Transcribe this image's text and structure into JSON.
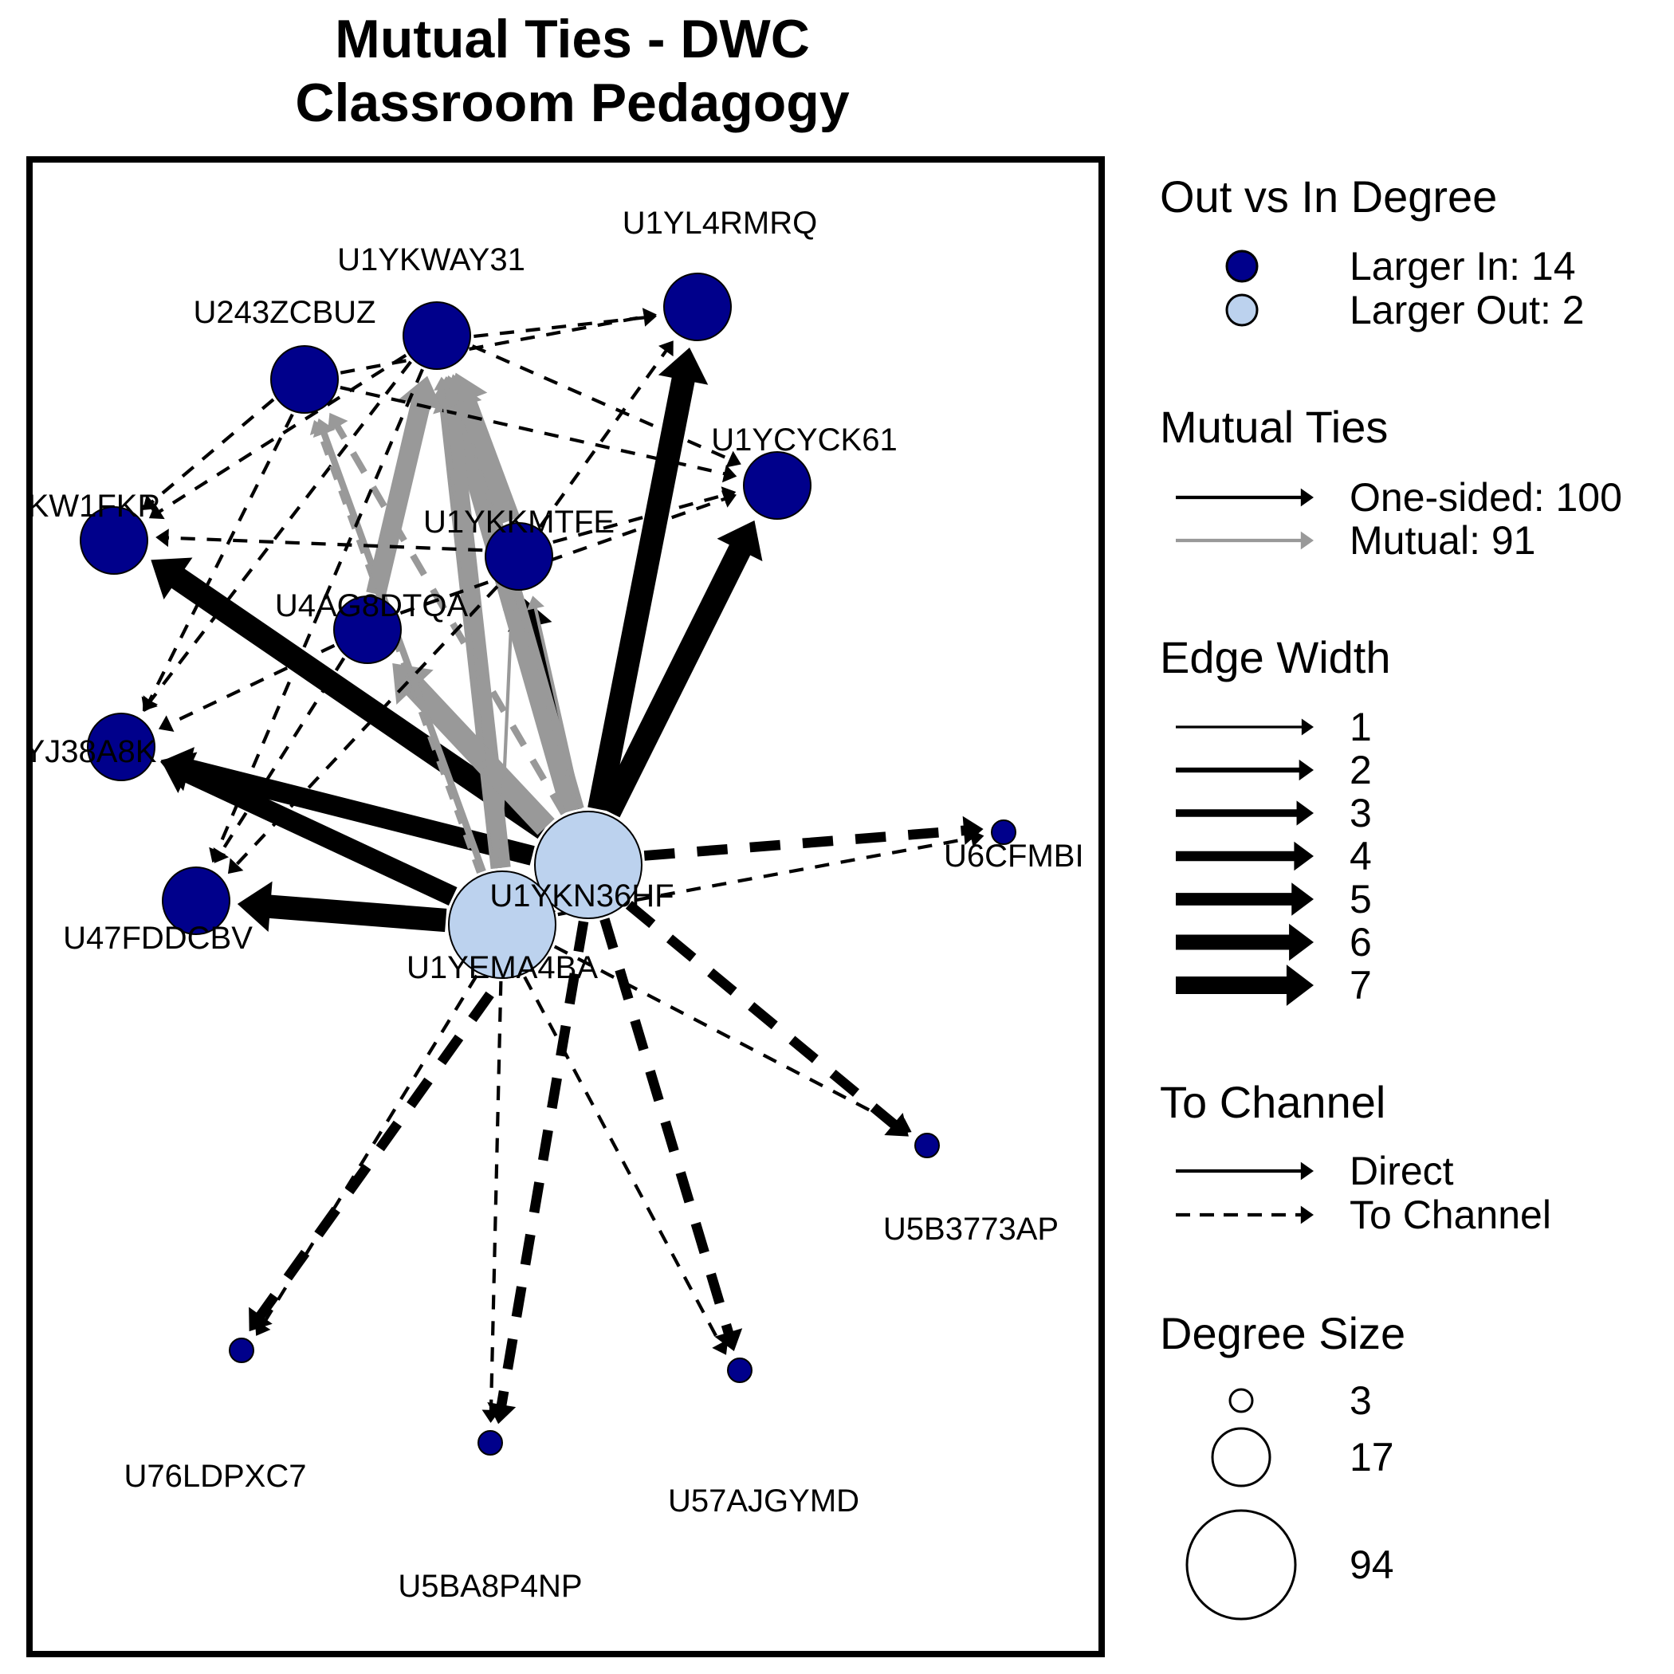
{
  "title_line1": "Mutual Ties - DWC",
  "title_line2": "Classroom Pedagogy",
  "colors": {
    "larger_in": "#00008B",
    "larger_out": "#BCD2EE",
    "one_sided": "#000000",
    "mutual": "#999999"
  },
  "nodes": [
    {
      "id": "U1YL4RMRQ",
      "label": "U1YL4RMRQ",
      "group": "in",
      "size": "large"
    },
    {
      "id": "U1YKWAY31",
      "label": "U1YKWAY31",
      "group": "in",
      "size": "large"
    },
    {
      "id": "U243ZCBUZ",
      "label": "U243ZCBUZ",
      "group": "in",
      "size": "large"
    },
    {
      "id": "U1YCYCK61",
      "label": "U1YCYCK61",
      "group": "in",
      "size": "large"
    },
    {
      "id": "KW1FKR",
      "label": "KW1FKR",
      "group": "in",
      "size": "large"
    },
    {
      "id": "U1YKKMTFE",
      "label": "U1YKKMTFE",
      "group": "in",
      "size": "large"
    },
    {
      "id": "U4AG8DTQA",
      "label": "U4AG8DTQA",
      "group": "in",
      "size": "large"
    },
    {
      "id": "YJ38A8K",
      "label": "YJ38A8K",
      "group": "in",
      "size": "large"
    },
    {
      "id": "U47FDDCBV",
      "label": "U47FDDCBV",
      "group": "in",
      "size": "large"
    },
    {
      "id": "U1YKN36HF",
      "label": "U1YKN36HF",
      "group": "out",
      "size": "xlarge"
    },
    {
      "id": "U1YEMA4BA",
      "label": "U1YEMA4BA",
      "group": "out",
      "size": "xlarge"
    },
    {
      "id": "U6CFMBI",
      "label": "U6CFMBI",
      "group": "in",
      "size": "small"
    },
    {
      "id": "U5B3773AP",
      "label": "U5B3773AP",
      "group": "in",
      "size": "small"
    },
    {
      "id": "U76LDPXC7",
      "label": "U76LDPXC7",
      "group": "in",
      "size": "small"
    },
    {
      "id": "U5BA8P4NP",
      "label": "U5BA8P4NP",
      "group": "in",
      "size": "small"
    },
    {
      "id": "U57AJGYMD",
      "label": "U57AJGYMD",
      "group": "in",
      "size": "small"
    }
  ],
  "edges": [
    {
      "from": "U1YKN36HF",
      "to": "U1YCYCK61",
      "type": "one_sided",
      "width": 7,
      "dashed": false
    },
    {
      "from": "U1YKN36HF",
      "to": "U1YL4RMRQ",
      "type": "one_sided",
      "width": 7,
      "dashed": false
    },
    {
      "from": "U1YKN36HF",
      "to": "KW1FKR",
      "type": "one_sided",
      "width": 7,
      "dashed": false
    },
    {
      "from": "U1YKN36HF",
      "to": "YJ38A8K",
      "type": "one_sided",
      "width": 6,
      "dashed": false
    },
    {
      "from": "U1YEMA4BA",
      "to": "U47FDDCBV",
      "type": "one_sided",
      "width": 7,
      "dashed": false
    },
    {
      "from": "U1YEMA4BA",
      "to": "YJ38A8K",
      "type": "one_sided",
      "width": 6,
      "dashed": false
    },
    {
      "from": "U1YKN36HF",
      "to": "U1YKKMTFE",
      "type": "one_sided",
      "width": 6,
      "dashed": false
    },
    {
      "from": "U1YKN36HF",
      "to": "U1YKWAY31",
      "type": "mutual",
      "width": 7,
      "dashed": false
    },
    {
      "from": "U1YEMA4BA",
      "to": "U1YKWAY31",
      "type": "mutual",
      "width": 6,
      "dashed": false
    },
    {
      "from": "U1YKN36HF",
      "to": "U4AG8DTQA",
      "type": "mutual",
      "width": 7,
      "dashed": false
    },
    {
      "from": "U1YEMA4BA",
      "to": "U243ZCBUZ",
      "type": "mutual",
      "width": 2,
      "dashed": false
    },
    {
      "from": "U1YKN36HF",
      "to": "U243ZCBUZ",
      "type": "mutual",
      "width": 2,
      "dashed": true
    },
    {
      "from": "U1YKN36HF",
      "to": "U1YEMA4BA",
      "type": "mutual",
      "width": 6,
      "dashed": false
    },
    {
      "from": "U4AG8DTQA",
      "to": "U1YKWAY31",
      "type": "mutual",
      "width": 6,
      "dashed": false
    },
    {
      "from": "U1YKKMTFE",
      "to": "U1YKWAY31",
      "type": "mutual",
      "width": 6,
      "dashed": false
    },
    {
      "from": "U1YKN36HF",
      "to": "U6CFMBI",
      "type": "one_sided",
      "width": 3,
      "dashed": true
    },
    {
      "from": "U1YEMA4BA",
      "to": "U6CFMBI",
      "type": "one_sided",
      "width": 1,
      "dashed": true
    },
    {
      "from": "U1YKN36HF",
      "to": "U5B3773AP",
      "type": "one_sided",
      "width": 3,
      "dashed": true
    },
    {
      "from": "U1YEMA4BA",
      "to": "U5B3773AP",
      "type": "one_sided",
      "width": 1,
      "dashed": true
    },
    {
      "from": "U1YKN36HF",
      "to": "U57AJGYMD",
      "type": "one_sided",
      "width": 3,
      "dashed": true
    },
    {
      "from": "U1YEMA4BA",
      "to": "U57AJGYMD",
      "type": "one_sided",
      "width": 1,
      "dashed": true
    },
    {
      "from": "U1YKN36HF",
      "to": "U5BA8P4NP",
      "type": "one_sided",
      "width": 3,
      "dashed": true
    },
    {
      "from": "U1YEMA4BA",
      "to": "U5BA8P4NP",
      "type": "one_sided",
      "width": 1,
      "dashed": true
    },
    {
      "from": "U1YKN36HF",
      "to": "U76LDPXC7",
      "type": "one_sided",
      "width": 3,
      "dashed": true
    },
    {
      "from": "U1YEMA4BA",
      "to": "U76LDPXC7",
      "type": "one_sided",
      "width": 1,
      "dashed": true
    },
    {
      "from": "U243ZCBUZ",
      "to": "U1YL4RMRQ",
      "type": "one_sided",
      "width": 1,
      "dashed": true
    },
    {
      "from": "U243ZCBUZ",
      "to": "KW1FKR",
      "type": "one_sided",
      "width": 1,
      "dashed": true
    },
    {
      "from": "U243ZCBUZ",
      "to": "YJ38A8K",
      "type": "one_sided",
      "width": 1,
      "dashed": true
    },
    {
      "from": "U243ZCBUZ",
      "to": "U1YCYCK61",
      "type": "one_sided",
      "width": 1,
      "dashed": true
    },
    {
      "from": "U1YKWAY31",
      "to": "U1YL4RMRQ",
      "type": "one_sided",
      "width": 1,
      "dashed": true
    },
    {
      "from": "U1YKWAY31",
      "to": "U1YCYCK61",
      "type": "one_sided",
      "width": 1,
      "dashed": true
    },
    {
      "from": "U1YKWAY31",
      "to": "KW1FKR",
      "type": "one_sided",
      "width": 1,
      "dashed": true
    },
    {
      "from": "U1YKWAY31",
      "to": "YJ38A8K",
      "type": "one_sided",
      "width": 1,
      "dashed": true
    },
    {
      "from": "U1YKKMTFE",
      "to": "U1YCYCK61",
      "type": "one_sided",
      "width": 1,
      "dashed": true
    },
    {
      "from": "U1YKKMTFE",
      "to": "U1YL4RMRQ",
      "type": "one_sided",
      "width": 1,
      "dashed": true
    },
    {
      "from": "U1YKKMTFE",
      "to": "KW1FKR",
      "type": "one_sided",
      "width": 1,
      "dashed": true
    },
    {
      "from": "U4AG8DTQA",
      "to": "U1YCYCK61",
      "type": "one_sided",
      "width": 1,
      "dashed": true
    },
    {
      "from": "U4AG8DTQA",
      "to": "YJ38A8K",
      "type": "one_sided",
      "width": 1,
      "dashed": true
    },
    {
      "from": "U4AG8DTQA",
      "to": "U47FDDCBV",
      "type": "one_sided",
      "width": 1,
      "dashed": true
    },
    {
      "from": "U1YKKMTFE",
      "to": "U47FDDCBV",
      "type": "one_sided",
      "width": 1,
      "dashed": true
    },
    {
      "from": "U1YKWAY31",
      "to": "U47FDDCBV",
      "type": "one_sided",
      "width": 1,
      "dashed": true
    },
    {
      "from": "U1YKN36HF",
      "to": "U1YKKMTFE",
      "type": "mutual",
      "width": 1,
      "dashed": false
    },
    {
      "from": "U1YEMA4BA",
      "to": "U1YKKMTFE",
      "type": "mutual",
      "width": 1,
      "dashed": false
    },
    {
      "from": "U1YEMA4BA",
      "to": "U1YKWAY31",
      "type": "mutual",
      "width": 1,
      "dashed": false
    },
    {
      "from": "U1YKN36HF",
      "to": "U1YKWAY31",
      "type": "mutual",
      "width": 1,
      "dashed": true
    },
    {
      "from": "U1YEMA4BA",
      "to": "U243ZCBUZ",
      "type": "mutual",
      "width": 1,
      "dashed": true
    }
  ],
  "legend": {
    "degree": {
      "title": "Out vs In Degree",
      "in_label": "Larger In:  14",
      "out_label": "Larger Out: 2"
    },
    "mutual": {
      "title": "Mutual Ties",
      "one_sided_label": "One-sided: 100",
      "mutual_label": "Mutual: 91"
    },
    "width": {
      "title": "Edge Width",
      "items": [
        "1",
        "2",
        "3",
        "4",
        "5",
        "6",
        "7"
      ]
    },
    "channel": {
      "title": "To Channel",
      "direct_label": "Direct",
      "channel_label": "To Channel"
    },
    "size": {
      "title": "Degree Size",
      "items": [
        "3",
        "17",
        "94"
      ]
    }
  }
}
